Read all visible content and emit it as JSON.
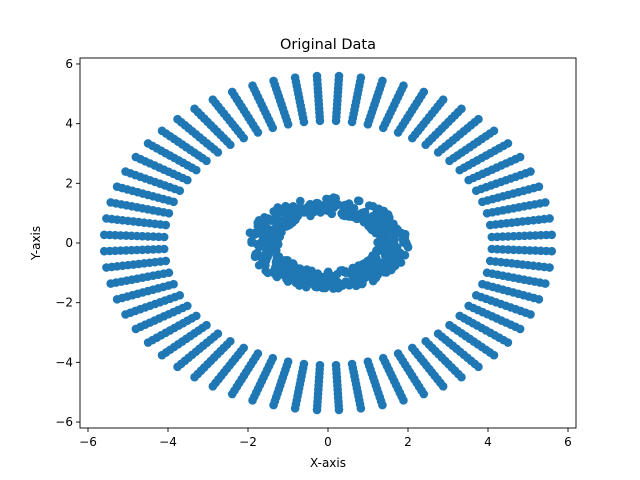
{
  "chart_data": {
    "type": "scatter",
    "title": "Original Data",
    "xlabel": "X-axis",
    "ylabel": "Y-axis",
    "xlim": [
      -6.2,
      6.2
    ],
    "ylim": [
      -6.2,
      6.2
    ],
    "xticks": [
      -6,
      -4,
      -2,
      0,
      2,
      4,
      6
    ],
    "yticks": [
      -6,
      -4,
      -2,
      0,
      2,
      4,
      6
    ],
    "grid": false,
    "legend": "none",
    "marker_color": "#1f77b4",
    "series": [
      {
        "shape": "concentric ring of radial spokes",
        "spokes": 64,
        "points_per_spoke": 12,
        "radius_range": [
          4.1,
          5.6
        ]
      },
      {
        "shape": "noisy inner ring",
        "points": 500,
        "radius_range": [
          0.95,
          1.55
        ],
        "x_stretch": 1.3
      }
    ]
  }
}
